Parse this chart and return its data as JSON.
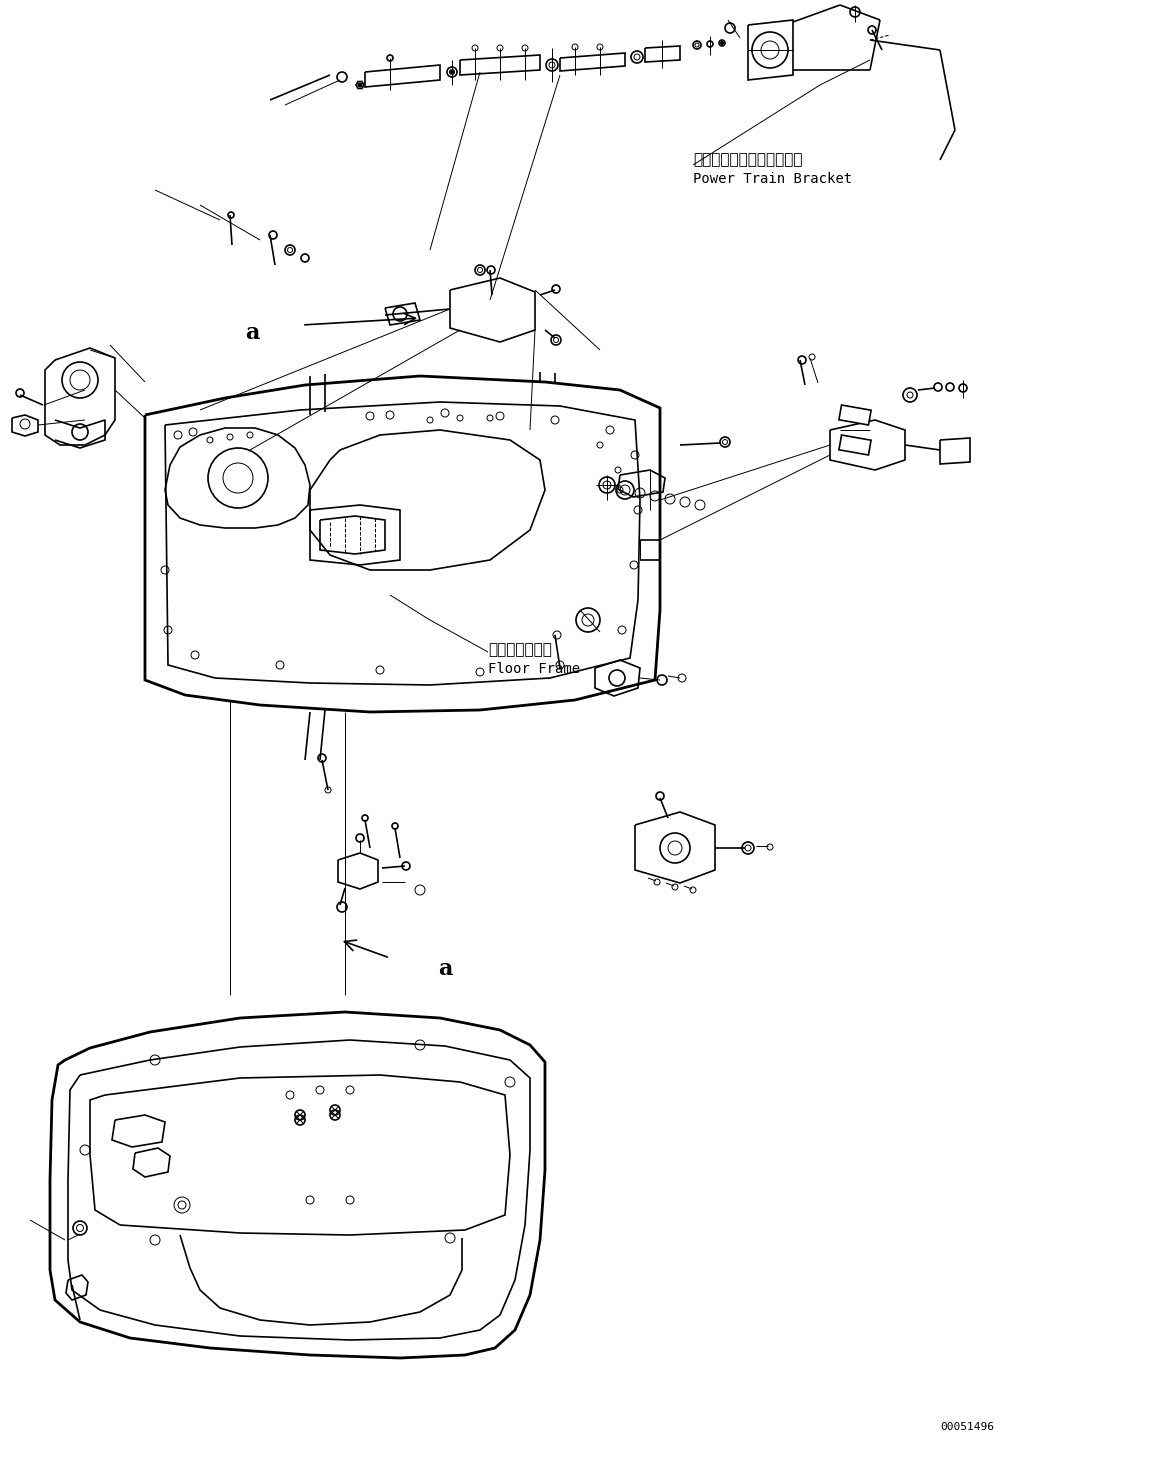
{
  "bg_color": "#ffffff",
  "line_color": "#000000",
  "fig_width": 11.59,
  "fig_height": 14.59,
  "dpi": 100,
  "label_power_train_jp": "パワートレインブラケット",
  "label_power_train_en": "Power Train Bracket",
  "label_floor_frame_jp": "フロアフレーム",
  "label_floor_frame_en": "Floor Frame",
  "label_a1": "a",
  "label_a2": "a",
  "part_number": "00051496",
  "font_size_jp": 11,
  "font_size_en": 10,
  "font_size_part": 8,
  "font_size_a": 16
}
